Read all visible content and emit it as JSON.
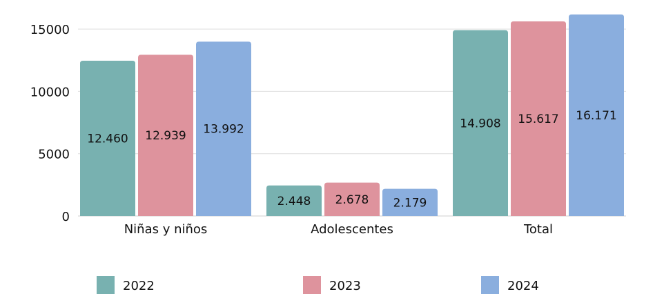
{
  "chart_data": {
    "type": "bar",
    "categories": [
      "Niñas y niños",
      "Adolescentes",
      "Total"
    ],
    "series": [
      {
        "name": "2022",
        "values": [
          12460,
          2448,
          14908
        ],
        "labels": [
          "12.460",
          "2.448",
          "14.908"
        ],
        "color": "#78B1B0"
      },
      {
        "name": "2023",
        "values": [
          12939,
          2678,
          15617
        ],
        "labels": [
          "12.939",
          "2.678",
          "15.617"
        ],
        "color": "#DE939D"
      },
      {
        "name": "2024",
        "values": [
          13992,
          2179,
          16171
        ],
        "labels": [
          "13.992",
          "2.179",
          "16.171"
        ],
        "color": "#8AAEDE"
      }
    ],
    "yticks": [
      0,
      5000,
      10000,
      15000
    ],
    "ytick_labels": [
      "0",
      "5000",
      "10000",
      "15000"
    ],
    "ylim": [
      0,
      16171
    ],
    "grid": true,
    "legend_position": "bottom"
  }
}
